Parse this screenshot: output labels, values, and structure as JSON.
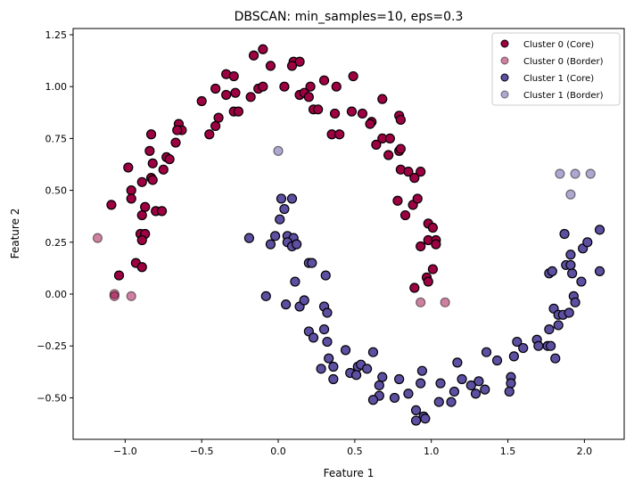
{
  "chart_data": {
    "type": "scatter",
    "title": "DBSCAN: min_samples=10, eps=0.3",
    "xlabel": "Feature 1",
    "ylabel": "Feature 2",
    "xlim": [
      -1.34,
      2.26
    ],
    "ylim": [
      -0.7,
      1.28
    ],
    "xticks": [
      -1.0,
      -0.5,
      0.0,
      0.5,
      1.0,
      1.5,
      2.0
    ],
    "xtick_labels": [
      "−1.0",
      "−0.5",
      "0.0",
      "0.5",
      "1.0",
      "1.5",
      "2.0"
    ],
    "yticks": [
      -0.5,
      -0.25,
      0.0,
      0.25,
      0.5,
      0.75,
      1.0,
      1.25
    ],
    "ytick_labels": [
      "−0.50",
      "−0.25",
      "0.00",
      "0.25",
      "0.50",
      "0.75",
      "1.00",
      "1.25"
    ],
    "grid": false,
    "legend_position": "top-right",
    "series": [
      {
        "name": "Cluster 0 (Core)",
        "color": "#9e0142",
        "alpha": 1.0,
        "points": [
          [
            -0.1,
            1.18
          ],
          [
            -0.16,
            1.15
          ],
          [
            -0.05,
            1.1
          ],
          [
            0.1,
            1.12
          ],
          [
            0.14,
            1.12
          ],
          [
            0.09,
            1.1
          ],
          [
            -0.34,
            1.06
          ],
          [
            -0.29,
            1.05
          ],
          [
            0.3,
            1.03
          ],
          [
            0.38,
            1.0
          ],
          [
            -0.41,
            0.99
          ],
          [
            -0.34,
            0.96
          ],
          [
            -0.28,
            0.97
          ],
          [
            -0.18,
            0.95
          ],
          [
            -0.13,
            0.99
          ],
          [
            -0.1,
            1.0
          ],
          [
            0.04,
            1.0
          ],
          [
            0.14,
            0.96
          ],
          [
            0.17,
            0.97
          ],
          [
            0.21,
            1.0
          ],
          [
            0.2,
            0.95
          ],
          [
            -0.5,
            0.93
          ],
          [
            0.23,
            0.89
          ],
          [
            0.26,
            0.89
          ],
          [
            0.37,
            0.87
          ],
          [
            -0.39,
            0.85
          ],
          [
            -0.29,
            0.88
          ],
          [
            -0.26,
            0.88
          ],
          [
            -0.65,
            0.82
          ],
          [
            -0.63,
            0.79
          ],
          [
            -0.66,
            0.79
          ],
          [
            -0.41,
            0.81
          ],
          [
            -0.45,
            0.77
          ],
          [
            -0.83,
            0.77
          ],
          [
            -0.67,
            0.73
          ],
          [
            0.35,
            0.77
          ],
          [
            0.4,
            0.77
          ],
          [
            -0.84,
            0.69
          ],
          [
            -0.73,
            0.66
          ],
          [
            -0.71,
            0.65
          ],
          [
            -0.98,
            0.61
          ],
          [
            -0.82,
            0.63
          ],
          [
            -0.75,
            0.6
          ],
          [
            -0.89,
            0.54
          ],
          [
            -0.83,
            0.56
          ],
          [
            -0.82,
            0.55
          ],
          [
            -0.96,
            0.5
          ],
          [
            -0.96,
            0.46
          ],
          [
            -1.09,
            0.43
          ],
          [
            -0.87,
            0.42
          ],
          [
            -0.89,
            0.38
          ],
          [
            -0.8,
            0.4
          ],
          [
            -0.76,
            0.4
          ],
          [
            -0.9,
            0.29
          ],
          [
            -0.87,
            0.29
          ],
          [
            -0.89,
            0.26
          ],
          [
            -0.93,
            0.15
          ],
          [
            -0.89,
            0.13
          ],
          [
            -1.04,
            0.09
          ],
          [
            0.49,
            1.05
          ],
          [
            0.68,
            0.94
          ],
          [
            0.48,
            0.88
          ],
          [
            0.55,
            0.87
          ],
          [
            0.61,
            0.83
          ],
          [
            0.6,
            0.82
          ],
          [
            0.79,
            0.86
          ],
          [
            0.8,
            0.84
          ],
          [
            0.68,
            0.75
          ],
          [
            0.73,
            0.75
          ],
          [
            0.64,
            0.72
          ],
          [
            0.72,
            0.67
          ],
          [
            0.79,
            0.69
          ],
          [
            0.8,
            0.7
          ],
          [
            0.8,
            0.6
          ],
          [
            0.85,
            0.59
          ],
          [
            0.93,
            0.59
          ],
          [
            0.89,
            0.56
          ],
          [
            0.78,
            0.45
          ],
          [
            0.88,
            0.43
          ],
          [
            0.91,
            0.46
          ],
          [
            0.83,
            0.38
          ],
          [
            0.98,
            0.34
          ],
          [
            1.01,
            0.32
          ],
          [
            0.98,
            0.26
          ],
          [
            1.03,
            0.26
          ],
          [
            1.03,
            0.24
          ],
          [
            0.93,
            0.23
          ],
          [
            1.01,
            0.12
          ],
          [
            0.97,
            0.08
          ],
          [
            0.98,
            0.06
          ],
          [
            0.89,
            0.03
          ]
        ]
      },
      {
        "name": "Cluster 0 (Border)",
        "color": "#9e0142",
        "alpha": 0.5,
        "points": [
          [
            0.93,
            -0.04
          ],
          [
            1.09,
            -0.04
          ],
          [
            -1.18,
            0.27
          ],
          [
            -1.07,
            0.0
          ],
          [
            -1.07,
            -0.01
          ],
          [
            -0.96,
            -0.01
          ]
        ]
      },
      {
        "name": "Cluster 1 (Core)",
        "color": "#5e4fa2",
        "alpha": 1.0,
        "points": [
          [
            0.02,
            0.46
          ],
          [
            0.09,
            0.46
          ],
          [
            0.04,
            0.41
          ],
          [
            0.01,
            0.36
          ],
          [
            -0.19,
            0.27
          ],
          [
            -0.02,
            0.28
          ],
          [
            0.06,
            0.28
          ],
          [
            0.1,
            0.27
          ],
          [
            0.06,
            0.25
          ],
          [
            -0.05,
            0.24
          ],
          [
            0.09,
            0.23
          ],
          [
            0.12,
            0.24
          ],
          [
            0.2,
            0.15
          ],
          [
            0.22,
            0.15
          ],
          [
            0.31,
            0.09
          ],
          [
            0.11,
            0.06
          ],
          [
            -0.08,
            -0.01
          ],
          [
            0.05,
            -0.05
          ],
          [
            0.14,
            -0.06
          ],
          [
            0.17,
            -0.03
          ],
          [
            0.3,
            -0.06
          ],
          [
            0.32,
            -0.09
          ],
          [
            0.2,
            -0.18
          ],
          [
            0.23,
            -0.21
          ],
          [
            0.3,
            -0.17
          ],
          [
            0.32,
            -0.23
          ],
          [
            0.44,
            -0.27
          ],
          [
            0.62,
            -0.28
          ],
          [
            0.33,
            -0.31
          ],
          [
            0.36,
            -0.35
          ],
          [
            0.28,
            -0.36
          ],
          [
            0.36,
            -0.41
          ],
          [
            0.52,
            -0.35
          ],
          [
            0.54,
            -0.34
          ],
          [
            0.58,
            -0.36
          ],
          [
            0.47,
            -0.38
          ],
          [
            0.51,
            -0.39
          ],
          [
            0.68,
            -0.4
          ],
          [
            0.66,
            -0.44
          ],
          [
            0.66,
            -0.49
          ],
          [
            0.62,
            -0.51
          ],
          [
            0.76,
            -0.5
          ],
          [
            0.79,
            -0.41
          ],
          [
            0.85,
            -0.48
          ],
          [
            0.9,
            -0.56
          ],
          [
            0.95,
            -0.59
          ],
          [
            0.96,
            -0.6
          ],
          [
            0.9,
            -0.61
          ],
          [
            0.94,
            -0.37
          ],
          [
            0.93,
            -0.43
          ],
          [
            1.06,
            -0.43
          ],
          [
            1.05,
            -0.52
          ],
          [
            1.13,
            -0.52
          ],
          [
            1.15,
            -0.47
          ],
          [
            1.17,
            -0.33
          ],
          [
            1.2,
            -0.41
          ],
          [
            1.26,
            -0.44
          ],
          [
            1.29,
            -0.48
          ],
          [
            1.31,
            -0.42
          ],
          [
            1.35,
            -0.46
          ],
          [
            1.36,
            -0.28
          ],
          [
            1.43,
            -0.32
          ],
          [
            1.52,
            -0.4
          ],
          [
            1.52,
            -0.43
          ],
          [
            1.51,
            -0.47
          ],
          [
            1.54,
            -0.3
          ],
          [
            1.56,
            -0.23
          ],
          [
            1.6,
            -0.26
          ],
          [
            1.69,
            -0.22
          ],
          [
            1.7,
            -0.25
          ],
          [
            1.76,
            -0.25
          ],
          [
            1.78,
            -0.25
          ],
          [
            1.81,
            -0.31
          ],
          [
            1.77,
            -0.17
          ],
          [
            1.83,
            -0.15
          ],
          [
            1.8,
            -0.07
          ],
          [
            1.83,
            -0.1
          ],
          [
            1.86,
            -0.1
          ],
          [
            1.9,
            -0.09
          ],
          [
            1.93,
            -0.01
          ],
          [
            1.94,
            -0.04
          ],
          [
            1.98,
            0.06
          ],
          [
            1.77,
            0.1
          ],
          [
            1.79,
            0.11
          ],
          [
            1.92,
            0.1
          ],
          [
            1.88,
            0.14
          ],
          [
            1.91,
            0.14
          ],
          [
            1.91,
            0.19
          ],
          [
            1.99,
            0.22
          ],
          [
            2.02,
            0.25
          ],
          [
            1.87,
            0.29
          ],
          [
            2.1,
            0.31
          ],
          [
            2.1,
            0.11
          ]
        ]
      },
      {
        "name": "Cluster 1 (Border)",
        "color": "#5e4fa2",
        "alpha": 0.5,
        "points": [
          [
            1.84,
            0.58
          ],
          [
            1.94,
            0.58
          ],
          [
            2.04,
            0.58
          ],
          [
            1.91,
            0.48
          ],
          [
            0.0,
            0.69
          ]
        ]
      }
    ]
  }
}
